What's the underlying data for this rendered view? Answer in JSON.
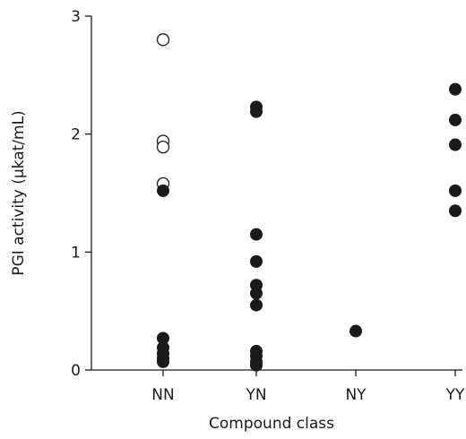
{
  "chart_data": {
    "type": "scatter",
    "title": "",
    "xlabel": "Compound class",
    "ylabel": "PGI activity (μkat/mL)",
    "categories": [
      "NN",
      "YN",
      "NY",
      "YY"
    ],
    "ylim": [
      0,
      3
    ],
    "yticks": [
      0,
      1,
      2,
      3
    ],
    "grid": false,
    "legend": "none",
    "colors": {
      "marker": "#1a1a1a",
      "axis": "#1a1a1a",
      "background": "#ffffff"
    },
    "series": [
      {
        "marker": "open-circle",
        "points": [
          {
            "category": "NN",
            "y": 2.8
          },
          {
            "category": "NN",
            "y": 1.94
          },
          {
            "category": "NN",
            "y": 1.89
          },
          {
            "category": "NN",
            "y": 1.58
          }
        ]
      },
      {
        "marker": "filled-circle",
        "points": [
          {
            "category": "NN",
            "y": 1.52
          },
          {
            "category": "NN",
            "y": 0.27
          },
          {
            "category": "NN",
            "y": 0.19
          },
          {
            "category": "NN",
            "y": 0.14
          },
          {
            "category": "NN",
            "y": 0.1
          },
          {
            "category": "NN",
            "y": 0.07
          },
          {
            "category": "YN",
            "y": 2.23
          },
          {
            "category": "YN",
            "y": 2.19
          },
          {
            "category": "YN",
            "y": 1.15
          },
          {
            "category": "YN",
            "y": 0.92
          },
          {
            "category": "YN",
            "y": 0.72
          },
          {
            "category": "YN",
            "y": 0.65
          },
          {
            "category": "YN",
            "y": 0.55
          },
          {
            "category": "YN",
            "y": 0.16
          },
          {
            "category": "YN",
            "y": 0.12
          },
          {
            "category": "YN",
            "y": 0.07
          },
          {
            "category": "YN",
            "y": 0.04
          },
          {
            "category": "NY",
            "y": 0.33
          },
          {
            "category": "YY",
            "y": 2.38
          },
          {
            "category": "YY",
            "y": 2.12
          },
          {
            "category": "YY",
            "y": 1.91
          },
          {
            "category": "YY",
            "y": 1.52
          },
          {
            "category": "YY",
            "y": 1.35
          }
        ]
      }
    ]
  }
}
